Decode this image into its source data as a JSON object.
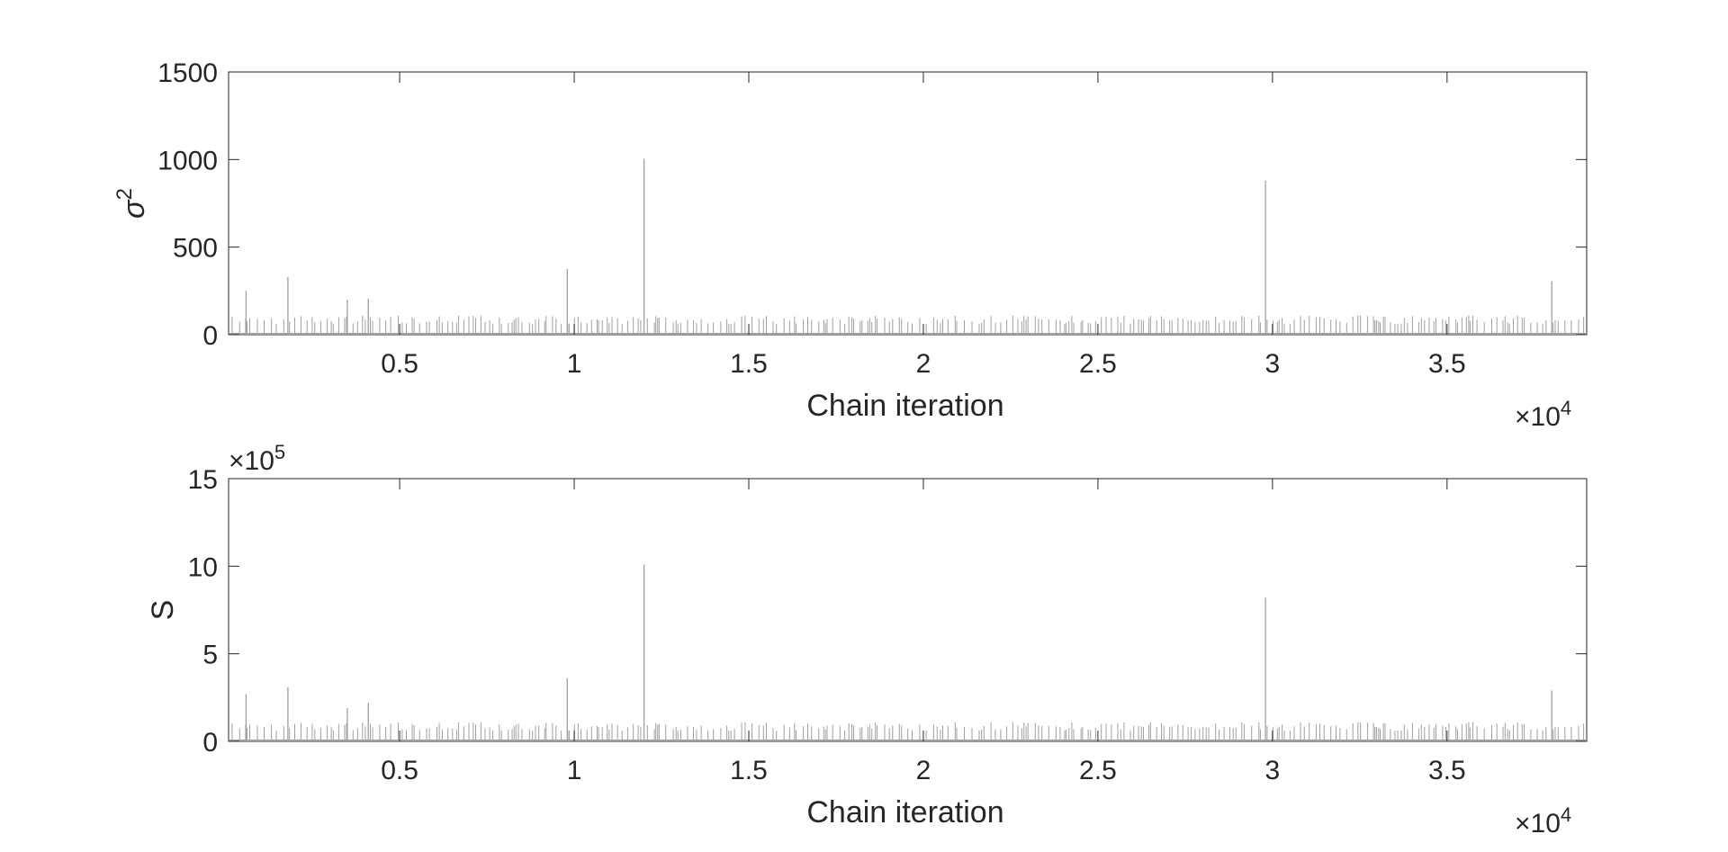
{
  "chart_data": [
    {
      "type": "line",
      "xlabel": "Chain iteration",
      "ylabel": "σ",
      "ylabel_superscript": "2",
      "x_exponent_label": {
        "times": "×",
        "base": "10",
        "exp": "4"
      },
      "y_exponent_label": null,
      "xlim": [
        0.01,
        3.9
      ],
      "ylim": [
        0,
        1500
      ],
      "xticks": [
        0.5,
        1,
        1.5,
        2,
        2.5,
        3,
        3.5
      ],
      "xtick_labels": [
        "0.5",
        "1",
        "1.5",
        "2",
        "2.5",
        "3",
        "3.5"
      ],
      "yticks": [
        0,
        500,
        1000,
        1500
      ],
      "ytick_labels": [
        "0",
        "500",
        "1000",
        "1500"
      ],
      "grid": false,
      "line_color": "#a0a0a0",
      "spikes": {
        "x": [
          0.06,
          0.18,
          0.35,
          0.41,
          0.98,
          1.2,
          2.98,
          3.8
        ],
        "y": [
          250,
          330,
          200,
          205,
          375,
          1005,
          880,
          305
        ]
      },
      "baseline_bar_height": 110
    },
    {
      "type": "line",
      "xlabel": "Chain iteration",
      "ylabel": "S",
      "ylabel_superscript": "",
      "x_exponent_label": {
        "times": "×",
        "base": "10",
        "exp": "4"
      },
      "y_exponent_label": {
        "times": "×",
        "base": "10",
        "exp": "5"
      },
      "xlim": [
        0.01,
        3.9
      ],
      "ylim": [
        0,
        15
      ],
      "xticks": [
        0.5,
        1,
        1.5,
        2,
        2.5,
        3,
        3.5
      ],
      "xtick_labels": [
        "0.5",
        "1",
        "1.5",
        "2",
        "2.5",
        "3",
        "3.5"
      ],
      "yticks": [
        0,
        5,
        10,
        15
      ],
      "ytick_labels": [
        "0",
        "5",
        "10",
        "15"
      ],
      "grid": false,
      "line_color": "#a0a0a0",
      "spikes": {
        "x": [
          0.06,
          0.18,
          0.35,
          0.41,
          0.98,
          1.2,
          2.98,
          3.8
        ],
        "y": [
          2.7,
          3.1,
          1.9,
          2.2,
          3.6,
          10.1,
          8.2,
          2.9
        ]
      },
      "baseline_bar_height": 1.1
    }
  ]
}
